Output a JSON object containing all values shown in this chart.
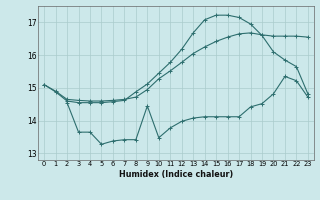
{
  "title": "",
  "xlabel": "Humidex (Indice chaleur)",
  "bg_color": "#cce8ea",
  "grid_color": "#aacccc",
  "line_color": "#2d6e6e",
  "xlim": [
    -0.5,
    23.5
  ],
  "ylim": [
    12.8,
    17.5
  ],
  "yticks": [
    13,
    14,
    15,
    16,
    17
  ],
  "xticks": [
    0,
    1,
    2,
    3,
    4,
    5,
    6,
    7,
    8,
    9,
    10,
    11,
    12,
    13,
    14,
    15,
    16,
    17,
    18,
    19,
    20,
    21,
    22,
    23
  ],
  "curve_top_x": [
    0,
    1,
    2,
    3,
    4,
    5,
    6,
    7,
    8,
    9,
    10,
    11,
    12,
    13,
    14,
    15,
    16,
    17,
    18,
    19,
    20,
    21,
    22,
    23
  ],
  "curve_top_y": [
    15.1,
    14.9,
    14.65,
    14.62,
    14.6,
    14.6,
    14.62,
    14.65,
    14.72,
    14.95,
    15.28,
    15.52,
    15.78,
    16.05,
    16.25,
    16.42,
    16.55,
    16.65,
    16.68,
    16.62,
    16.58,
    16.58,
    16.58,
    16.55
  ],
  "curve_mid_x": [
    0,
    1,
    2,
    3,
    4,
    5,
    6,
    7,
    8,
    9,
    10,
    11,
    12,
    13,
    14,
    15,
    16,
    17,
    18,
    19,
    20,
    21,
    22,
    23
  ],
  "curve_mid_y": [
    15.1,
    14.88,
    14.6,
    14.55,
    14.55,
    14.55,
    14.58,
    14.62,
    14.88,
    15.12,
    15.45,
    15.78,
    16.18,
    16.68,
    17.08,
    17.22,
    17.22,
    17.15,
    16.95,
    16.6,
    16.1,
    15.85,
    15.65,
    14.82
  ],
  "curve_bot_x": [
    2,
    3,
    4,
    5,
    6,
    7,
    8,
    9,
    10,
    11,
    12,
    13,
    14,
    15,
    16,
    17,
    18,
    19,
    20,
    21,
    22,
    23
  ],
  "curve_bot_y": [
    14.55,
    13.65,
    13.65,
    13.28,
    13.38,
    13.42,
    13.42,
    14.45,
    13.48,
    13.78,
    13.98,
    14.08,
    14.12,
    14.12,
    14.12,
    14.12,
    14.42,
    14.52,
    14.82,
    15.35,
    15.22,
    14.72
  ]
}
